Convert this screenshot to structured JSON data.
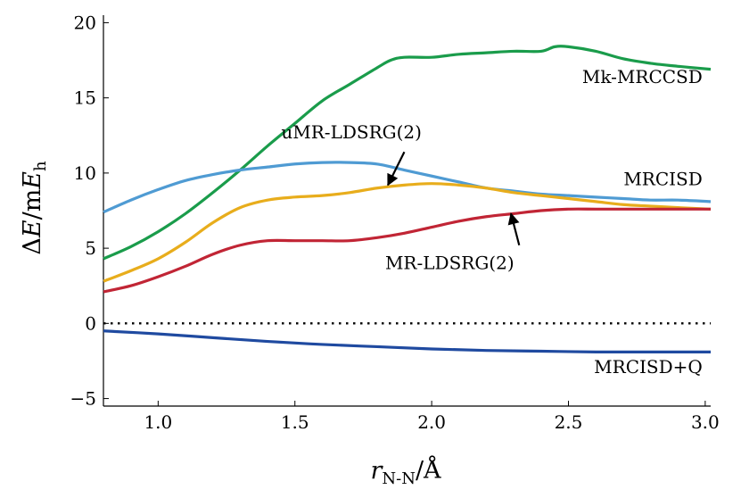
{
  "chart_data": {
    "type": "line",
    "xlabel": "r N-N / Å",
    "xlabel_parts": {
      "var": "r",
      "sub": "N-N",
      "unit": "/Å"
    },
    "ylabel": "ΔE / mEh",
    "ylabel_parts": {
      "delta": "Δ",
      "var": "E",
      "slash": "/m",
      "var2": "E",
      "sub": "h"
    },
    "xlim": [
      0.8,
      3.02
    ],
    "ylim": [
      -5.5,
      20.5
    ],
    "xticks": [
      1.0,
      1.5,
      2.0,
      2.5,
      3.0
    ],
    "xtick_labels": [
      "1.0",
      "1.5",
      "2.0",
      "2.5",
      "3.0"
    ],
    "yticks": [
      -5,
      0,
      5,
      10,
      15,
      20
    ],
    "ytick_labels": [
      "−5",
      "0",
      "5",
      "10",
      "15",
      "20"
    ],
    "grid": false,
    "reference_line": {
      "y": 0,
      "style": "dotted"
    },
    "series": [
      {
        "name": "Mk-MRCCSD",
        "color": "#1a9c4b",
        "x": [
          0.8,
          0.9,
          1.0,
          1.1,
          1.2,
          1.3,
          1.4,
          1.5,
          1.6,
          1.7,
          1.8,
          1.85,
          1.9,
          2.0,
          2.1,
          2.2,
          2.3,
          2.4,
          2.45,
          2.5,
          2.6,
          2.7,
          2.8,
          2.9,
          3.02
        ],
        "y": [
          4.3,
          5.1,
          6.1,
          7.3,
          8.7,
          10.2,
          11.8,
          13.3,
          14.8,
          15.9,
          17.0,
          17.5,
          17.7,
          17.7,
          17.9,
          18.0,
          18.1,
          18.1,
          18.4,
          18.4,
          18.1,
          17.6,
          17.3,
          17.1,
          16.9
        ]
      },
      {
        "name": "MRCISD",
        "color": "#4f9bd3",
        "x": [
          0.8,
          0.9,
          1.0,
          1.1,
          1.2,
          1.3,
          1.4,
          1.5,
          1.6,
          1.7,
          1.8,
          1.9,
          2.0,
          2.1,
          2.2,
          2.3,
          2.4,
          2.5,
          2.6,
          2.7,
          2.8,
          2.9,
          3.02
        ],
        "y": [
          7.4,
          8.2,
          8.9,
          9.5,
          9.9,
          10.2,
          10.4,
          10.6,
          10.7,
          10.7,
          10.6,
          10.2,
          9.8,
          9.4,
          9.0,
          8.8,
          8.6,
          8.5,
          8.4,
          8.3,
          8.2,
          8.2,
          8.1
        ]
      },
      {
        "name": "uMR-LDSRG(2)",
        "color": "#e8ad1c",
        "x": [
          0.8,
          0.9,
          1.0,
          1.1,
          1.2,
          1.3,
          1.4,
          1.5,
          1.6,
          1.7,
          1.8,
          1.9,
          2.0,
          2.1,
          2.2,
          2.3,
          2.4,
          2.5,
          2.6,
          2.7,
          2.8,
          2.9,
          3.02
        ],
        "y": [
          2.8,
          3.5,
          4.3,
          5.4,
          6.7,
          7.7,
          8.2,
          8.4,
          8.5,
          8.7,
          9.0,
          9.2,
          9.3,
          9.2,
          9.0,
          8.7,
          8.5,
          8.3,
          8.1,
          7.9,
          7.8,
          7.7,
          7.6
        ]
      },
      {
        "name": "MR-LDSRG(2)",
        "color": "#c12535",
        "x": [
          0.8,
          0.9,
          1.0,
          1.1,
          1.2,
          1.3,
          1.4,
          1.5,
          1.6,
          1.7,
          1.8,
          1.9,
          2.0,
          2.1,
          2.2,
          2.3,
          2.4,
          2.5,
          2.6,
          2.7,
          2.8,
          2.9,
          3.02
        ],
        "y": [
          2.1,
          2.5,
          3.1,
          3.8,
          4.6,
          5.2,
          5.5,
          5.5,
          5.5,
          5.5,
          5.7,
          6.0,
          6.4,
          6.8,
          7.1,
          7.3,
          7.5,
          7.6,
          7.6,
          7.6,
          7.6,
          7.6,
          7.6
        ]
      },
      {
        "name": "MRCISD+Q",
        "color": "#1f4aa0",
        "x": [
          0.8,
          1.0,
          1.2,
          1.4,
          1.6,
          1.8,
          2.0,
          2.2,
          2.4,
          2.6,
          2.8,
          3.02
        ],
        "y": [
          -0.5,
          -0.7,
          -0.95,
          -1.2,
          -1.4,
          -1.55,
          -1.7,
          -1.8,
          -1.85,
          -1.9,
          -1.9,
          -1.9
        ]
      }
    ],
    "annotations": [
      {
        "text": "Mk-MRCCSD",
        "x": 2.99,
        "y": 16.0,
        "align": "end"
      },
      {
        "text": "MRCISD",
        "x": 2.99,
        "y": 9.2,
        "align": "end"
      },
      {
        "text": "uMR-LDSRG(2)",
        "x": 1.45,
        "y": 12.3,
        "align": "start",
        "arrow_from": [
          1.9,
          11.4
        ],
        "arrow_to": [
          1.84,
          9.2
        ]
      },
      {
        "text": "MR-LDSRG(2)",
        "x": 1.83,
        "y": 3.6,
        "align": "start",
        "arrow_from": [
          2.32,
          5.2
        ],
        "arrow_to": [
          2.29,
          7.3
        ]
      },
      {
        "text": "MRCISD+Q",
        "x": 2.99,
        "y": -3.3,
        "align": "end"
      }
    ]
  }
}
